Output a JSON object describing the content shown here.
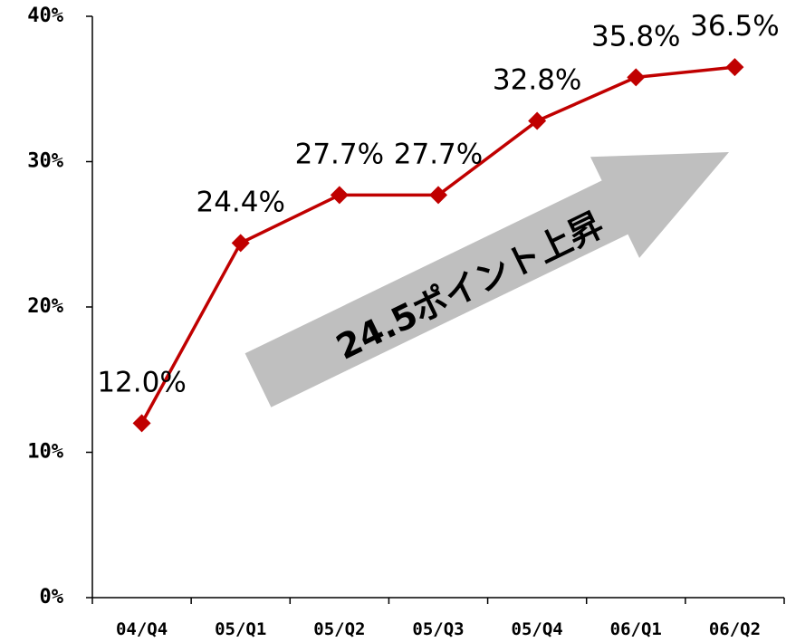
{
  "chart_data": {
    "type": "line",
    "title": "",
    "xlabel": "",
    "ylabel": "",
    "categories": [
      "04/Q4",
      "05/Q1",
      "05/Q2",
      "05/Q3",
      "05/Q4",
      "06/Q1",
      "06/Q2"
    ],
    "series": [
      {
        "values": [
          12.0,
          24.4,
          27.7,
          27.7,
          32.8,
          35.8,
          36.5
        ],
        "labels": [
          "12.0%",
          "24.4%",
          "27.7%",
          "27.7%",
          "32.8%",
          "35.8%",
          "36.5%"
        ]
      }
    ],
    "yticks": [
      "0%",
      "10%",
      "20%",
      "30%",
      "40%"
    ],
    "ylim": [
      0,
      40
    ],
    "grid": false,
    "line_color": "#C00000",
    "marker": "diamond",
    "annotation": {
      "text": "24.5ポイント上昇",
      "shape": "arrow",
      "color": "#BFBFBF"
    }
  }
}
